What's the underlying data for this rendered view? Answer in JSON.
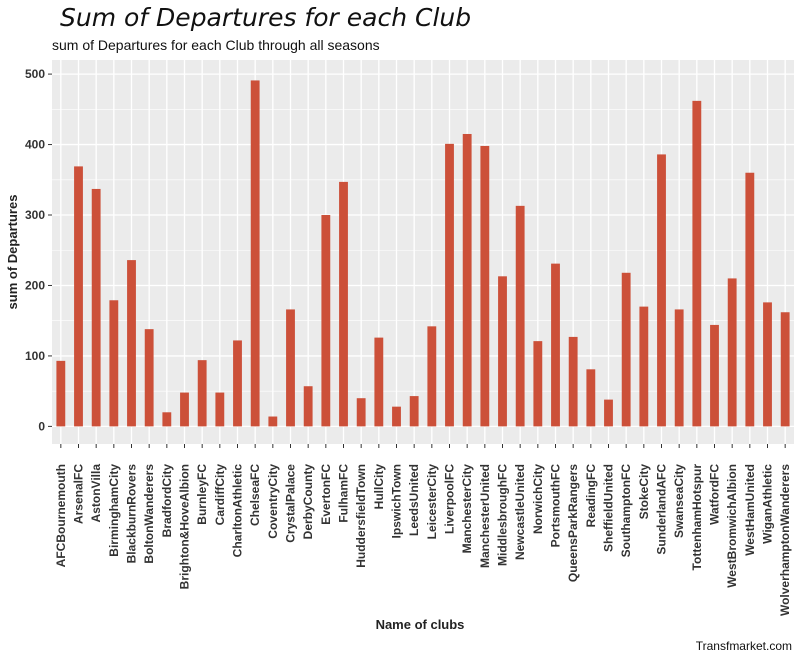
{
  "chart_data": {
    "type": "bar",
    "title": "Sum of Departures for each Club",
    "subtitle": "sum of Departures for each Club through all seasons",
    "xlabel": "Name of clubs",
    "ylabel": "sum of Departures",
    "caption": "Transfmarket.com",
    "ylim": [
      -25,
      520
    ],
    "yticks": [
      0,
      100,
      200,
      300,
      400,
      500
    ],
    "grid": true,
    "colors": {
      "bar": "#CC5039",
      "panel": "#EBEBEB",
      "grid": "#FFFFFF"
    },
    "categories": [
      "AFCBournemouth",
      "ArsenalFC",
      "AstonVilla",
      "BirminghamCity",
      "BlackburnRovers",
      "BoltonWanderers",
      "BradfordCity",
      "Brighton&HoveAlbion",
      "BurnleyFC",
      "CardiffCity",
      "CharltonAthletic",
      "ChelseaFC",
      "CoventryCity",
      "CrystalPalace",
      "DerbyCounty",
      "EvertonFC",
      "FulhamFC",
      "HuddersfieldTown",
      "HullCity",
      "IpswichTown",
      "LeedsUnited",
      "LeicesterCity",
      "LiverpoolFC",
      "ManchesterCity",
      "ManchesterUnited",
      "MiddlesbroughFC",
      "NewcastleUnited",
      "NorwichCity",
      "PortsmouthFC",
      "QueensParkRangers",
      "ReadingFC",
      "SheffieldUnited",
      "SouthamptonFC",
      "StokeCity",
      "SunderlandAFC",
      "SwanseaCity",
      "TottenhamHotspur",
      "WatfordFC",
      "WestBromwichAlbion",
      "WestHamUnited",
      "WiganAthletic",
      "WolverhamptonWanderers"
    ],
    "values": [
      93,
      369,
      337,
      179,
      236,
      138,
      20,
      48,
      94,
      48,
      122,
      491,
      14,
      166,
      57,
      300,
      347,
      40,
      126,
      28,
      43,
      142,
      401,
      415,
      398,
      213,
      313,
      121,
      231,
      127,
      81,
      38,
      218,
      170,
      386,
      166,
      462,
      144,
      210,
      360,
      176,
      162
    ]
  }
}
